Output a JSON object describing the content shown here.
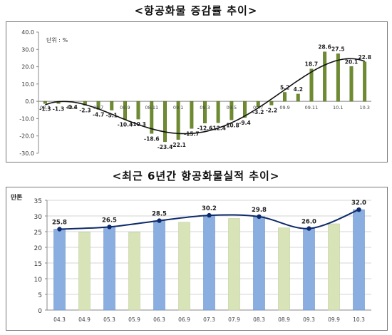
{
  "chart_data": [
    {
      "type": "bar",
      "title": "<항공화물 증감률 추이>",
      "unit_label": "단위 : %",
      "ylim": [
        -30,
        40
      ],
      "yticks": [
        "40.0",
        "30.0",
        "20.0",
        "10.0",
        "0.0",
        "-10.0",
        "-20.0",
        "-30.0"
      ],
      "ytick_values": [
        40,
        30,
        20,
        10,
        0,
        -10,
        -20,
        -30
      ],
      "x_tick_labels": [
        "08.3",
        "08.5",
        "08.7",
        "08.9",
        "08.11",
        "09.1",
        "09.3",
        "09.5",
        "09.7",
        "09.9",
        "09.11",
        "10.1",
        "10.3"
      ],
      "values": [
        -1.3,
        -1.3,
        -0.4,
        -2.3,
        -4.7,
        -5.1,
        -10.4,
        -10.3,
        -18.6,
        -23.4,
        -22.1,
        -15.7,
        -12.6,
        -12.4,
        -10.8,
        -9.4,
        -3.2,
        -2.2,
        5.2,
        4.2,
        18.7,
        28.6,
        27.5,
        20.1,
        22.8
      ],
      "value_labels": [
        "-1.3",
        "-1.3",
        "-0.4",
        "-2.3",
        "-4.7",
        "-5.1",
        "-10.4",
        "-10.3",
        "-18.6",
        "-23.4",
        "-22.1",
        "-15.7",
        "-12.6",
        "-12.4",
        "-10.8",
        "-9.4",
        "-3.2",
        "-2.2",
        "5.2",
        "4.2",
        "18.7",
        "28.6",
        "27.5",
        "20.1",
        "22.8"
      ],
      "trend_line": true,
      "grid": false,
      "colors": {
        "bar": "#6e8b2f",
        "bar_edge": "#4f6a1c",
        "line": "#111111"
      }
    },
    {
      "type": "bar",
      "title": "<최근 6년간 항공화물실적 추이>",
      "unit_label": "만톤",
      "ylim": [
        0,
        35
      ],
      "yticks": [
        "35",
        "30",
        "25",
        "20",
        "15",
        "10",
        "5",
        "0"
      ],
      "ytick_values": [
        35,
        30,
        25,
        20,
        15,
        10,
        5,
        0
      ],
      "categories": [
        "04.3",
        "04.9",
        "05.3",
        "05.9",
        "06.3",
        "06.9",
        "07.3",
        "07.9",
        "08.3",
        "08.9",
        "09.3",
        "09.9",
        "10.3"
      ],
      "values": [
        25.8,
        24.8,
        26.5,
        24.8,
        28.5,
        28.0,
        30.2,
        29.2,
        29.8,
        26.2,
        26.0,
        27.5,
        32.0
      ],
      "highlight": [
        true,
        false,
        true,
        false,
        true,
        false,
        true,
        false,
        true,
        false,
        true,
        false,
        true
      ],
      "value_labels": [
        "25.8",
        "",
        "26.5",
        "",
        "28.5",
        "",
        "30.2",
        "",
        "29.8",
        "",
        "26.0",
        "",
        "32.0"
      ],
      "trend_line": true,
      "grid": true,
      "colors": {
        "bar_primary": "#8aaee0",
        "bar_secondary": "#d8e4b8",
        "line": "#0d2a6b",
        "marker": "#0d2a6b"
      }
    }
  ]
}
